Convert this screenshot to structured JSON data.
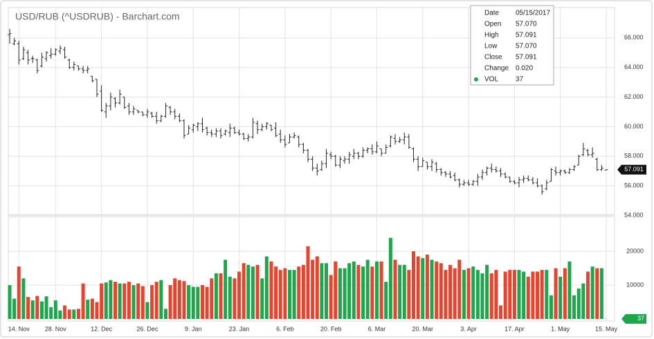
{
  "chart_data": {
    "type": "ohlc",
    "title": "USD/RUB (^USDRUB) - Barchart.com",
    "categories": [
      null,
      null,
      "14. Nov",
      null,
      null,
      null,
      null,
      null,
      null,
      null,
      "28. Nov",
      null,
      null,
      null,
      null,
      null,
      null,
      null,
      null,
      null,
      "12. Dec",
      null,
      null,
      null,
      null,
      null,
      null,
      null,
      null,
      null,
      "26. Dec",
      null,
      null,
      null,
      null,
      null,
      null,
      null,
      null,
      null,
      "9. Jan",
      null,
      null,
      null,
      null,
      null,
      null,
      null,
      null,
      null,
      "23. Jan",
      null,
      null,
      null,
      null,
      null,
      null,
      null,
      null,
      null,
      "6. Feb",
      null,
      null,
      null,
      null,
      null,
      null,
      null,
      null,
      null,
      "20. Feb",
      null,
      null,
      null,
      null,
      null,
      null,
      null,
      null,
      null,
      "6. Mar",
      null,
      null,
      null,
      null,
      null,
      null,
      null,
      null,
      null,
      "20. Mar",
      null,
      null,
      null,
      null,
      null,
      null,
      null,
      null,
      null,
      "3. Apr",
      null,
      null,
      null,
      null,
      null,
      null,
      null,
      null,
      null,
      "17. Apr",
      null,
      null,
      null,
      null,
      null,
      null,
      null,
      null,
      null,
      "1. May",
      null,
      null,
      null,
      null,
      null,
      null,
      null,
      null,
      null,
      "15. May"
    ],
    "open": [
      66.2,
      65.6,
      65.6,
      64.6,
      65.0,
      64.6,
      64.5,
      64.1,
      64.6,
      64.8,
      64.9,
      65.1,
      65.2,
      64.5,
      64.0,
      64.1,
      63.9,
      63.8,
      63.4,
      63.2,
      62.4,
      61.0,
      61.4,
      61.9,
      61.6,
      62.0,
      61.4,
      61.0,
      61.1,
      61.0,
      60.8,
      60.9,
      60.7,
      60.4,
      60.7,
      61.3,
      61.0,
      60.7,
      60.4,
      59.5,
      59.8,
      60.0,
      60.2,
      59.9,
      59.6,
      59.5,
      59.7,
      59.5,
      59.6,
      59.9,
      59.6,
      59.5,
      59.2,
      59.3,
      60.2,
      59.8,
      60.0,
      60.1,
      59.9,
      59.5,
      59.1,
      58.9,
      59.3,
      59.3,
      58.8,
      58.4,
      57.8,
      57.2,
      57.1,
      57.5,
      58.1,
      58.0,
      57.4,
      57.7,
      57.8,
      58.0,
      58.2,
      58.0,
      58.4,
      58.5,
      58.3,
      58.5,
      58.2,
      58.7,
      59.2,
      59.0,
      59.1,
      59.3,
      58.5,
      57.8,
      57.3,
      57.6,
      57.3,
      57.5,
      57.1,
      56.9,
      56.8,
      56.7,
      56.4,
      56.1,
      56.2,
      56.1,
      56.3,
      56.6,
      56.9,
      57.2,
      57.1,
      57.0,
      56.8,
      56.6,
      56.3,
      56.2,
      56.4,
      56.5,
      56.4,
      56.2,
      56.0,
      55.8,
      56.3,
      57.0,
      56.9,
      57.0,
      56.9,
      57.1,
      57.4,
      58.1,
      58.4,
      58.1,
      57.8,
      57.1,
      57.07
    ],
    "high": [
      66.6,
      66.0,
      65.8,
      65.4,
      65.2,
      64.8,
      64.6,
      65.0,
      65.1,
      65.3,
      65.3,
      65.5,
      65.4,
      64.6,
      64.4,
      64.1,
      64.1,
      64.1,
      63.4,
      63.2,
      62.8,
      61.6,
      62.3,
      62.0,
      62.5,
      62.0,
      61.6,
      61.4,
      61.1,
      61.0,
      61.2,
      61.0,
      61.0,
      60.8,
      61.6,
      61.4,
      61.2,
      60.9,
      60.5,
      60.1,
      60.2,
      60.3,
      60.6,
      60.0,
      59.8,
      59.9,
      59.9,
      59.8,
      60.2,
      60.0,
      59.8,
      59.6,
      59.5,
      60.6,
      60.4,
      60.2,
      60.3,
      60.1,
      60.3,
      59.8,
      59.4,
      59.5,
      59.6,
      59.4,
      58.9,
      58.5,
      58.0,
      57.5,
      57.7,
      58.5,
      58.3,
      58.1,
      58.0,
      58.0,
      58.3,
      58.5,
      58.3,
      58.6,
      58.6,
      58.8,
      59.0,
      58.5,
      58.8,
      59.4,
      59.5,
      59.3,
      59.6,
      59.5,
      58.6,
      58.0,
      57.9,
      57.6,
      57.8,
      57.6,
      57.2,
      57.0,
      57.0,
      56.9,
      56.5,
      56.4,
      56.4,
      56.4,
      56.8,
      57.1,
      57.3,
      57.5,
      57.3,
      57.2,
      56.9,
      56.6,
      56.4,
      56.6,
      56.7,
      56.7,
      56.6,
      56.5,
      56.1,
      56.4,
      57.2,
      57.3,
      57.1,
      57.1,
      57.2,
      57.4,
      58.1,
      58.9,
      58.5,
      58.6,
      57.9,
      57.4,
      57.091
    ],
    "low": [
      65.6,
      65.5,
      64.2,
      64.5,
      64.2,
      64.3,
      63.6,
      64.0,
      64.4,
      64.6,
      64.8,
      64.9,
      64.6,
      63.9,
      63.8,
      63.8,
      63.6,
      63.6,
      63.0,
      62.0,
      61.0,
      60.6,
      61.1,
      61.3,
      61.5,
      61.2,
      60.8,
      60.8,
      60.9,
      60.7,
      60.6,
      60.6,
      60.2,
      60.3,
      60.6,
      60.8,
      60.5,
      60.3,
      59.2,
      59.5,
      59.6,
      59.7,
      59.6,
      59.4,
      59.3,
      59.3,
      59.2,
      59.4,
      59.3,
      59.5,
      59.4,
      59.1,
      59.0,
      59.2,
      59.5,
      59.7,
      59.8,
      59.7,
      59.3,
      58.9,
      58.6,
      58.9,
      59.2,
      58.6,
      58.2,
      57.6,
      57.0,
      56.7,
      57.0,
      57.2,
      57.8,
      57.3,
      57.2,
      57.5,
      57.5,
      57.8,
      57.8,
      57.9,
      58.2,
      58.1,
      58.2,
      58.0,
      58.2,
      58.6,
      58.8,
      58.9,
      58.8,
      58.5,
      57.6,
      57.0,
      57.3,
      57.1,
      57.0,
      56.9,
      56.7,
      56.6,
      56.5,
      56.3,
      55.9,
      56.0,
      56.0,
      56.0,
      56.0,
      56.4,
      56.7,
      56.9,
      56.9,
      56.6,
      56.5,
      56.2,
      56.1,
      55.9,
      56.2,
      56.3,
      56.1,
      55.9,
      55.4,
      55.7,
      56.3,
      56.7,
      56.7,
      56.8,
      56.8,
      57.0,
      57.4,
      58.0,
      58.0,
      57.9,
      57.0,
      57.0,
      57.07
    ],
    "close": [
      66.3,
      65.8,
      64.5,
      65.2,
      64.5,
      64.6,
      63.8,
      64.7,
      65.0,
      64.9,
      65.2,
      65.3,
      64.7,
      64.0,
      64.2,
      63.9,
      63.8,
      63.9,
      63.1,
      62.2,
      61.1,
      61.4,
      62.0,
      61.6,
      62.2,
      61.3,
      61.0,
      61.2,
      61.0,
      60.8,
      61.0,
      60.7,
      60.4,
      60.7,
      61.4,
      61.0,
      60.7,
      60.4,
      59.4,
      59.9,
      60.1,
      60.2,
      59.8,
      59.6,
      59.5,
      59.7,
      59.4,
      59.7,
      59.9,
      59.6,
      59.5,
      59.2,
      59.3,
      60.3,
      59.8,
      60.0,
      60.2,
      59.8,
      59.4,
      59.1,
      58.8,
      59.3,
      59.4,
      58.8,
      58.4,
      57.8,
      57.2,
      57.0,
      57.5,
      58.2,
      58.0,
      57.4,
      57.8,
      57.8,
      58.1,
      58.2,
      58.0,
      58.4,
      58.5,
      58.3,
      58.7,
      58.2,
      58.6,
      59.3,
      59.0,
      59.1,
      59.3,
      58.6,
      57.8,
      57.3,
      57.7,
      57.3,
      57.6,
      57.1,
      56.9,
      56.8,
      56.6,
      56.4,
      56.1,
      56.2,
      56.1,
      56.3,
      56.6,
      56.9,
      57.2,
      57.1,
      57.0,
      56.8,
      56.6,
      56.3,
      56.2,
      56.4,
      56.5,
      56.4,
      56.2,
      56.0,
      55.6,
      56.2,
      57.1,
      56.9,
      57.0,
      56.9,
      57.1,
      57.3,
      58.0,
      58.5,
      58.1,
      58.2,
      57.1,
      57.2,
      57.091
    ],
    "up_color": "#1ea64d",
    "down_color": "#e8432d",
    "bar_color": "#222222",
    "ylim": [
      54,
      68
    ],
    "yticks": [
      {
        "value": 54,
        "label": "54.000"
      },
      {
        "value": 56,
        "label": "56.000"
      },
      {
        "value": 58,
        "label": "58.000"
      },
      {
        "value": 60,
        "label": "60.000"
      },
      {
        "value": 62,
        "label": "62.000"
      },
      {
        "value": 64,
        "label": "64.000"
      },
      {
        "value": 66,
        "label": "66.000"
      }
    ],
    "grid": true,
    "price_tag": "57.091",
    "volume": {
      "values": [
        10000,
        6000,
        15500,
        12000,
        6500,
        5500,
        6800,
        5200,
        6700,
        3500,
        5500,
        2500,
        4000,
        2800,
        2800,
        3000,
        10500,
        5700,
        6000,
        5000,
        10500,
        10800,
        11500,
        11000,
        10500,
        10500,
        11000,
        10000,
        10500,
        9700,
        5000,
        10000,
        11000,
        11500,
        3000,
        10000,
        12000,
        11500,
        11200,
        10000,
        9500,
        9500,
        10000,
        9500,
        12000,
        13500,
        13500,
        17500,
        12500,
        12000,
        14000,
        16500,
        16000,
        15500,
        16000,
        12000,
        18500,
        17000,
        15500,
        14500,
        15000,
        14500,
        14500,
        15500,
        16000,
        21500,
        17500,
        18500,
        16500,
        16500,
        13000,
        17000,
        15000,
        15000,
        16500,
        17000,
        16000,
        15500,
        17500,
        15500,
        17000,
        17000,
        11000,
        24000,
        17500,
        16000,
        16000,
        14500,
        20000,
        18500,
        18000,
        19000,
        17500,
        17000,
        16500,
        14500,
        16000,
        15000,
        17500,
        14500,
        15000,
        15500,
        14500,
        13500,
        16000,
        13500,
        14500,
        4000,
        14000,
        14500,
        14500,
        14500,
        14000,
        12500,
        14000,
        14000,
        14500,
        14500,
        7000,
        15000,
        12500,
        15000,
        17000,
        7000,
        9000,
        10500,
        14000,
        15500,
        15000,
        15000,
        37
      ],
      "ylim": [
        0,
        30000
      ],
      "yticks": [
        10000,
        20000
      ]
    },
    "volume_tag": "37"
  },
  "tooltip": {
    "rows": [
      {
        "label": "Date",
        "value": "05/15/2017"
      },
      {
        "label": "Open",
        "value": "57.070"
      },
      {
        "label": "High",
        "value": "57.091"
      },
      {
        "label": "Low",
        "value": "57.070"
      },
      {
        "label": "Close",
        "value": "57.091"
      },
      {
        "label": "Change",
        "value": "0.020"
      },
      {
        "label": "VOL",
        "value": "37"
      }
    ]
  }
}
